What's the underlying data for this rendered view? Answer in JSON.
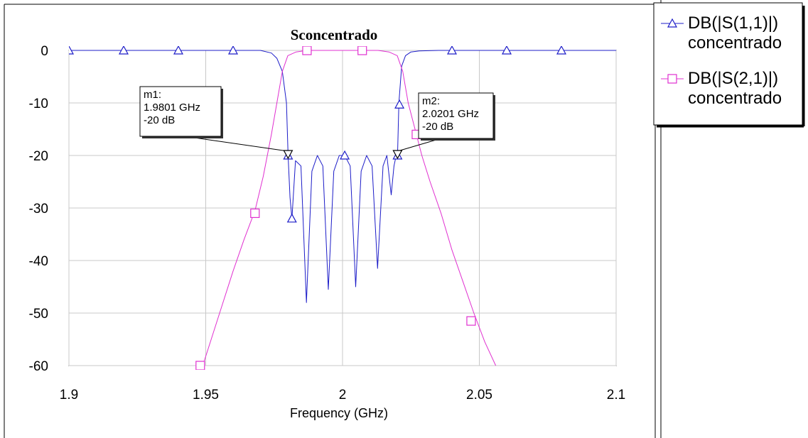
{
  "chart_data": {
    "type": "line",
    "title": "Sconcentrado",
    "xlabel": "Frequency (GHz)",
    "ylabel": "",
    "xlim": [
      1.9,
      2.1
    ],
    "ylim": [
      -60,
      0
    ],
    "x_ticks": [
      "1.9",
      "1.95",
      "2",
      "2.05",
      "2.1"
    ],
    "y_ticks": [
      "0",
      "-10",
      "-20",
      "-30",
      "-40",
      "-50",
      "-60"
    ],
    "grid": true,
    "legend_position": "right",
    "series": [
      {
        "name": "DB(|S(1,1)|) concentrado",
        "legend_lines": [
          "DB(|S(1,1)|)",
          "concentrado"
        ],
        "color": "#1c1cc8",
        "marker": "triangle-up",
        "x": [
          1.9,
          1.97,
          1.974,
          1.976,
          1.978,
          1.9795,
          1.9801,
          1.9808,
          1.9815,
          1.9828,
          1.9848,
          1.9868,
          1.9888,
          1.9908,
          1.9928,
          1.9948,
          1.9968,
          1.9988,
          2.0008,
          2.0028,
          2.0048,
          2.0068,
          2.0088,
          2.0108,
          2.0128,
          2.0148,
          2.0162,
          2.0178,
          2.0188,
          2.0196,
          2.0201,
          2.0206,
          2.0216,
          2.023,
          2.025,
          2.028,
          2.035,
          2.1
        ],
        "y": [
          0,
          0,
          -0.5,
          -1.5,
          -4,
          -10,
          -20,
          -28,
          -32,
          -21,
          -22,
          -48,
          -23,
          -20,
          -22,
          -45.5,
          -23,
          -20,
          -20,
          -22,
          -45,
          -23,
          -20,
          -22,
          -41.5,
          -22,
          -20,
          -27.5,
          -22,
          -20,
          -20,
          -10,
          -3,
          -1,
          -0.3,
          -0.1,
          0,
          0
        ],
        "marker_x": [
          1.9,
          1.92,
          1.94,
          1.96,
          1.9801,
          1.9815,
          2.0008,
          2.0201,
          2.0208,
          2.04,
          2.06,
          2.08
        ],
        "marker_y": [
          0,
          0,
          0,
          0,
          -20,
          -32,
          -20,
          -20,
          -10.3,
          0,
          0,
          0
        ]
      },
      {
        "name": "DB(|S(2,1)|) concentrado",
        "legend_lines": [
          "DB(|S(2,1)|)",
          "concentrado"
        ],
        "color": "#e030d0",
        "marker": "square",
        "x": [
          1.9489,
          1.952,
          1.956,
          1.96,
          1.964,
          1.968,
          1.971,
          1.974,
          1.976,
          1.978,
          1.98,
          1.983,
          1.987,
          2.0,
          2.013,
          2.017,
          2.02,
          2.022,
          2.024,
          2.026,
          2.029,
          2.032,
          2.036,
          2.04,
          2.044,
          2.048,
          2.052,
          2.056
        ],
        "y": [
          -60,
          -55,
          -48.5,
          -42,
          -36,
          -30.5,
          -24,
          -16,
          -10,
          -4,
          -1,
          -0.3,
          0,
          0,
          0,
          -0.3,
          -1,
          -4,
          -10,
          -14,
          -20,
          -25,
          -31,
          -38,
          -44,
          -50,
          -55.5,
          -60
        ],
        "marker_x": [
          1.948,
          1.968,
          1.987,
          2.0072,
          2.027,
          2.047
        ],
        "marker_y": [
          -60,
          -31,
          0,
          0,
          -16,
          -51.5
        ]
      }
    ],
    "markers": [
      {
        "label": "m1:",
        "freq": "1.9801 GHz",
        "level": "-20 dB",
        "x": 1.9801,
        "y": -20
      },
      {
        "label": "m2:",
        "freq": "2.0201 GHz",
        "level": "-20 dB",
        "x": 2.0201,
        "y": -20
      }
    ]
  }
}
